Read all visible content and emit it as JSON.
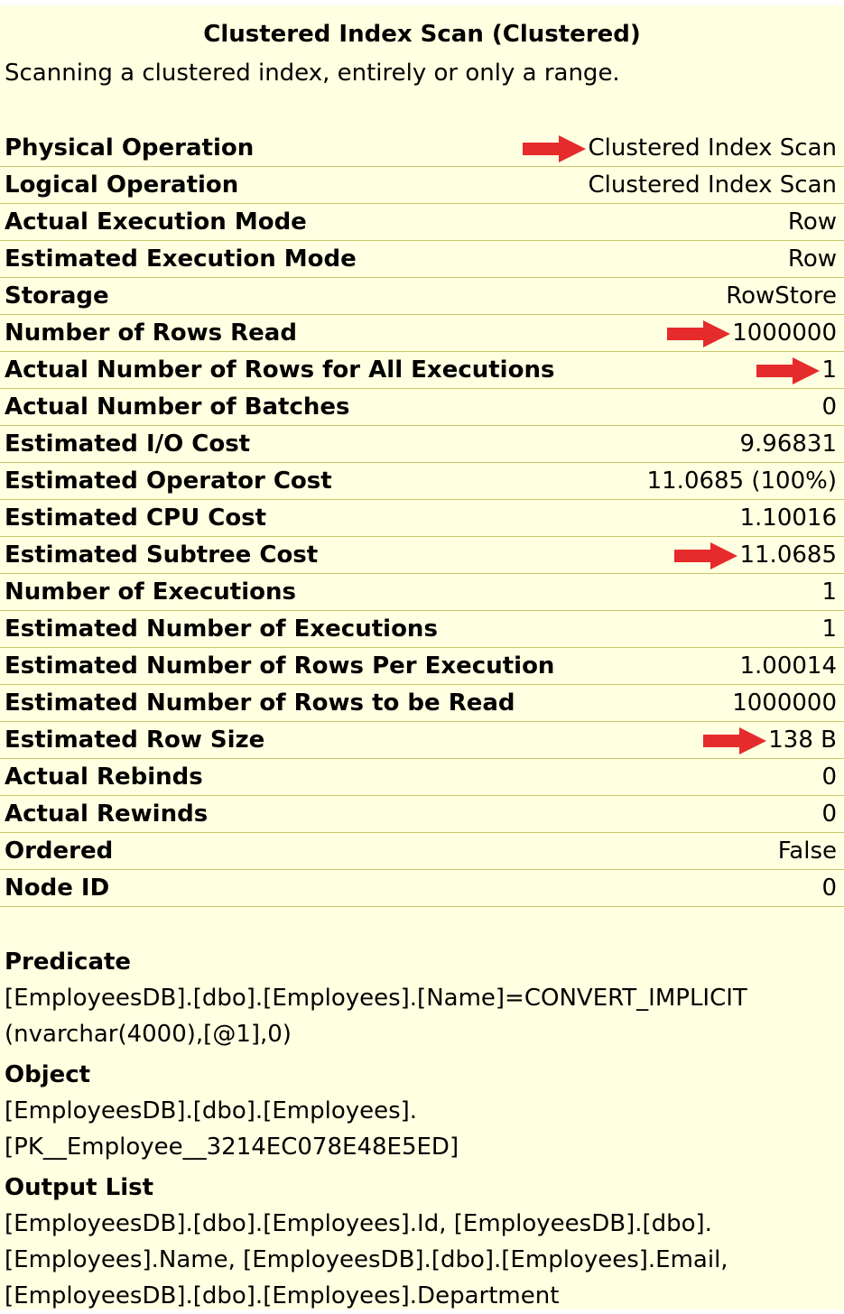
{
  "header": {
    "title": "Clustered Index Scan (Clustered)",
    "subtitle": "Scanning a clustered index, entirely or only a range."
  },
  "colors": {
    "background": "#ffffe1",
    "divider": "#c8c86e",
    "arrow": "#e52b2b"
  },
  "properties": [
    {
      "label": "Physical Operation",
      "value": "Clustered Index Scan",
      "arrow": true
    },
    {
      "label": "Logical Operation",
      "value": "Clustered Index Scan",
      "arrow": false
    },
    {
      "label": "Actual Execution Mode",
      "value": "Row",
      "arrow": false
    },
    {
      "label": "Estimated Execution Mode",
      "value": "Row",
      "arrow": false
    },
    {
      "label": "Storage",
      "value": "RowStore",
      "arrow": false
    },
    {
      "label": "Number of Rows Read",
      "value": "1000000",
      "arrow": true
    },
    {
      "label": "Actual Number of Rows for All Executions",
      "value": "1",
      "arrow": true
    },
    {
      "label": "Actual Number of Batches",
      "value": "0",
      "arrow": false
    },
    {
      "label": "Estimated I/O Cost",
      "value": "9.96831",
      "arrow": false
    },
    {
      "label": "Estimated Operator Cost",
      "value": "11.0685 (100%)",
      "arrow": false
    },
    {
      "label": "Estimated CPU Cost",
      "value": "1.10016",
      "arrow": false
    },
    {
      "label": "Estimated Subtree Cost",
      "value": "11.0685",
      "arrow": true
    },
    {
      "label": "Number of Executions",
      "value": "1",
      "arrow": false
    },
    {
      "label": "Estimated Number of Executions",
      "value": "1",
      "arrow": false
    },
    {
      "label": "Estimated Number of Rows Per Execution",
      "value": "1.00014",
      "arrow": false
    },
    {
      "label": "Estimated Number of Rows to be Read",
      "value": "1000000",
      "arrow": false
    },
    {
      "label": "Estimated Row Size",
      "value": "138 B",
      "arrow": true
    },
    {
      "label": "Actual Rebinds",
      "value": "0",
      "arrow": false
    },
    {
      "label": "Actual Rewinds",
      "value": "0",
      "arrow": false
    },
    {
      "label": "Ordered",
      "value": "False",
      "arrow": false
    },
    {
      "label": "Node ID",
      "value": "0",
      "arrow": false
    }
  ],
  "sections": [
    {
      "label": "Predicate",
      "lines": [
        "[EmployeesDB].[dbo].[Employees].[Name]=CONVERT_IMPLICIT",
        "(nvarchar(4000),[@1],0)"
      ]
    },
    {
      "label": "Object",
      "lines": [
        "[EmployeesDB].[dbo].[Employees].",
        "[PK__Employee__3214EC078E48E5ED]"
      ]
    },
    {
      "label": "Output List",
      "lines": [
        "[EmployeesDB].[dbo].[Employees].Id, [EmployeesDB].[dbo].",
        "[Employees].Name, [EmployeesDB].[dbo].[Employees].Email,",
        "[EmployeesDB].[dbo].[Employees].Department"
      ]
    }
  ]
}
